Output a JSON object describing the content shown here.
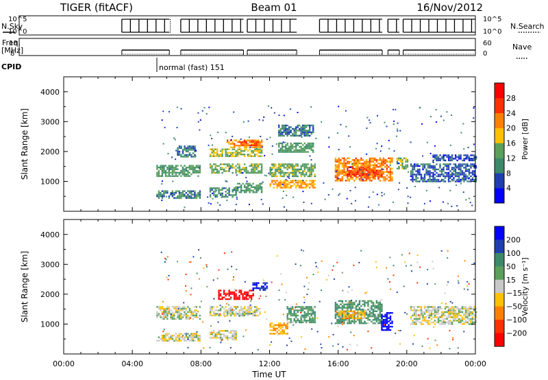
{
  "header": {
    "radar": "TIGER (fitACF)",
    "beam": "Beam 01",
    "date": "16/Nov/2012"
  },
  "aux_panels": {
    "nsky_label": "N.Sky",
    "nsky_ticks": [
      "10^5",
      "10^0"
    ],
    "nsearch_label": "N.Search",
    "nsearch_ticks": [
      "10^5",
      "10^0"
    ],
    "freq_label": [
      "Freq.",
      "[MHz]"
    ],
    "freq_ticks": [
      "18",
      "8"
    ],
    "nave_label": "Nave",
    "nave_ticks": [
      "60",
      "0"
    ],
    "cpid_label": "CPID",
    "cpid_text": "normal (fast) 151"
  },
  "chart_data": [
    {
      "type": "heatmap",
      "name": "power",
      "ylabel": "Slant Range [km]",
      "ylim": [
        0,
        4500
      ],
      "yticks": [
        1000,
        2000,
        3000,
        4000
      ],
      "xlim": [
        0,
        24
      ],
      "colorbar": {
        "label": "Power [dB]",
        "ticks": [
          4,
          8,
          12,
          16,
          20,
          24,
          28
        ],
        "range": [
          0,
          32
        ],
        "colors": [
          "#0000ff",
          "#1f3fb0",
          "#3c8a6a",
          "#5aa05a",
          "#ffc000",
          "#ff8000",
          "#ff3000",
          "#ff0000"
        ]
      },
      "regions": [
        {
          "t": [
            5.4,
            7.9
          ],
          "r": [
            1150,
            1550
          ],
          "level": 12
        },
        {
          "t": [
            5.4,
            7.9
          ],
          "r": [
            450,
            700
          ],
          "level": 10
        },
        {
          "t": [
            6.6,
            7.6
          ],
          "r": [
            1800,
            2200
          ],
          "level": 8
        },
        {
          "t": [
            8.5,
            11.5
          ],
          "r": [
            1300,
            1600
          ],
          "level": 14
        },
        {
          "t": [
            8.5,
            11.5
          ],
          "r": [
            1850,
            2100
          ],
          "level": 16
        },
        {
          "t": [
            9.5,
            11.5
          ],
          "r": [
            2150,
            2400
          ],
          "level": 22
        },
        {
          "t": [
            10.3,
            11.2
          ],
          "r": [
            2200,
            2350
          ],
          "level": 25
        },
        {
          "t": [
            8.5,
            10.0
          ],
          "r": [
            500,
            800
          ],
          "level": 10
        },
        {
          "t": [
            10.0,
            11.5
          ],
          "r": [
            650,
            950
          ],
          "level": 12
        },
        {
          "t": [
            12.0,
            14.6
          ],
          "r": [
            1150,
            1600
          ],
          "level": 14
        },
        {
          "t": [
            12.0,
            14.6
          ],
          "r": [
            800,
            1050
          ],
          "level": 20
        },
        {
          "t": [
            12.5,
            14.5
          ],
          "r": [
            2000,
            2300
          ],
          "level": 12
        },
        {
          "t": [
            12.5,
            14.5
          ],
          "r": [
            2550,
            2900
          ],
          "level": 9
        },
        {
          "t": [
            15.8,
            19.1
          ],
          "r": [
            1000,
            1800
          ],
          "level": 22
        },
        {
          "t": [
            16.5,
            18.5
          ],
          "r": [
            1100,
            1500
          ],
          "level": 26
        },
        {
          "t": [
            19.4,
            20.0
          ],
          "r": [
            1400,
            1800
          ],
          "level": 14
        },
        {
          "t": [
            20.2,
            24.0
          ],
          "r": [
            1000,
            1600
          ],
          "level": 7
        },
        {
          "t": [
            21.5,
            24.0
          ],
          "r": [
            1700,
            1900
          ],
          "level": 6
        }
      ]
    },
    {
      "type": "heatmap",
      "name": "velocity",
      "ylabel": "Slant Range [km]",
      "ylim": [
        0,
        4500
      ],
      "yticks": [
        1000,
        2000,
        3000,
        4000
      ],
      "xlabel": "Time UT",
      "xlim": [
        0,
        24
      ],
      "xticks": [
        "00:00",
        "04:00",
        "08:00",
        "12:00",
        "16:00",
        "20:00",
        "00:00"
      ],
      "colorbar": {
        "label": "Velocity [m s⁻¹]",
        "ticks": [
          200,
          100,
          50,
          15,
          -15,
          -50,
          -100,
          -200
        ],
        "colors": [
          "#0000ff",
          "#1f3fb0",
          "#3c8a6a",
          "#5aa05a",
          "#c8c8c8",
          "#ffc000",
          "#ff8000",
          "#ff3000",
          "#ff0000"
        ]
      },
      "regions": [
        {
          "t": [
            5.4,
            7.9
          ],
          "r": [
            1150,
            1600
          ],
          "v": 0
        },
        {
          "t": [
            5.4,
            7.9
          ],
          "r": [
            450,
            700
          ],
          "v": 0
        },
        {
          "t": [
            8.5,
            11.5
          ],
          "r": [
            1300,
            1600
          ],
          "v": 0
        },
        {
          "t": [
            9.0,
            11.0
          ],
          "r": [
            1850,
            2150
          ],
          "v": -250
        },
        {
          "t": [
            11.0,
            11.8
          ],
          "r": [
            2150,
            2400
          ],
          "v": 150
        },
        {
          "t": [
            8.5,
            10.0
          ],
          "r": [
            500,
            800
          ],
          "v": 0
        },
        {
          "t": [
            12.0,
            13.0
          ],
          "r": [
            700,
            1050
          ],
          "v": -50
        },
        {
          "t": [
            13.0,
            14.6
          ],
          "r": [
            1050,
            1600
          ],
          "v": 40
        },
        {
          "t": [
            15.8,
            18.5
          ],
          "r": [
            1050,
            1800
          ],
          "v": 40
        },
        {
          "t": [
            16.0,
            17.5
          ],
          "r": [
            1200,
            1450
          ],
          "v": -40
        },
        {
          "t": [
            18.5,
            19.1
          ],
          "r": [
            800,
            1400
          ],
          "v": 200
        },
        {
          "t": [
            20.2,
            24.0
          ],
          "r": [
            1000,
            1600
          ],
          "v": 0
        }
      ]
    }
  ]
}
